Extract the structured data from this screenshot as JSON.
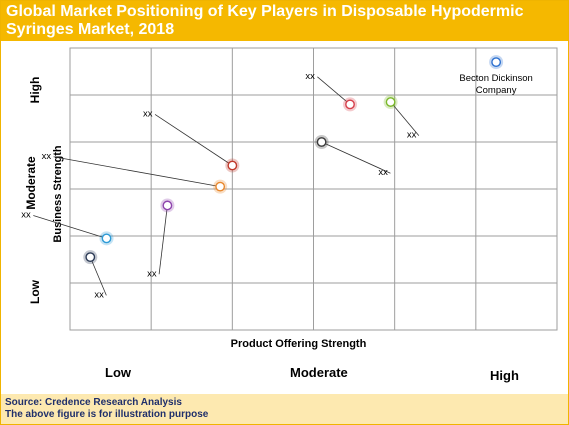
{
  "title": "Global Market Positioning of Key Players in Disposable Hypodermic Syringes Market, 2018",
  "footer": {
    "source": "Source: Credence Research Analysis",
    "note": "The above figure is for illustration purpose"
  },
  "colors": {
    "title_bar": "#f5b800",
    "footer_bar": "#fde9b0",
    "footer_text": "#1f2f6b",
    "grid": "#9e9e9e"
  },
  "chart_data": {
    "type": "scatter",
    "xlabel": "Product Offering Strength",
    "ylabel": "Business Strength",
    "x_categories": [
      "Low",
      "Moderate",
      "High"
    ],
    "y_categories": [
      "Low",
      "Moderate",
      "High"
    ],
    "xlim": [
      0,
      6
    ],
    "ylim": [
      0,
      6
    ],
    "grid": true,
    "points": [
      {
        "label": "Becton Dickinson Company",
        "x": 5.25,
        "y": 5.7,
        "color": "#2a6fcf",
        "label_x": 5.2,
        "label_y": 5.3
      },
      {
        "label": "xx",
        "x": 3.45,
        "y": 4.8,
        "color": "#d6404c",
        "label_x": 2.9,
        "label_y": 5.45
      },
      {
        "label": "xx",
        "x": 3.95,
        "y": 4.85,
        "color": "#7ab829",
        "label_x": 4.15,
        "label_y": 4.2
      },
      {
        "label": "xx",
        "x": 3.1,
        "y": 4.0,
        "color": "#3a3a3a",
        "label_x": 3.8,
        "label_y": 3.4
      },
      {
        "label": "xx",
        "x": 2.0,
        "y": 3.5,
        "color": "#c0392b",
        "label_x": 0.9,
        "label_y": 4.65
      },
      {
        "label": "xx",
        "x": 1.85,
        "y": 3.05,
        "color": "#e8872c",
        "label_x": -0.35,
        "label_y": 3.75
      },
      {
        "label": "xx",
        "x": 1.2,
        "y": 2.65,
        "color": "#8e44ad",
        "label_x": 0.95,
        "label_y": 1.25
      },
      {
        "label": "xx",
        "x": 0.45,
        "y": 1.95,
        "color": "#2e9bd6",
        "label_x": -0.6,
        "label_y": 2.5
      },
      {
        "label": "xx",
        "x": 0.25,
        "y": 1.55,
        "color": "#2b3a55",
        "label_x": 0.3,
        "label_y": 0.8
      }
    ]
  }
}
